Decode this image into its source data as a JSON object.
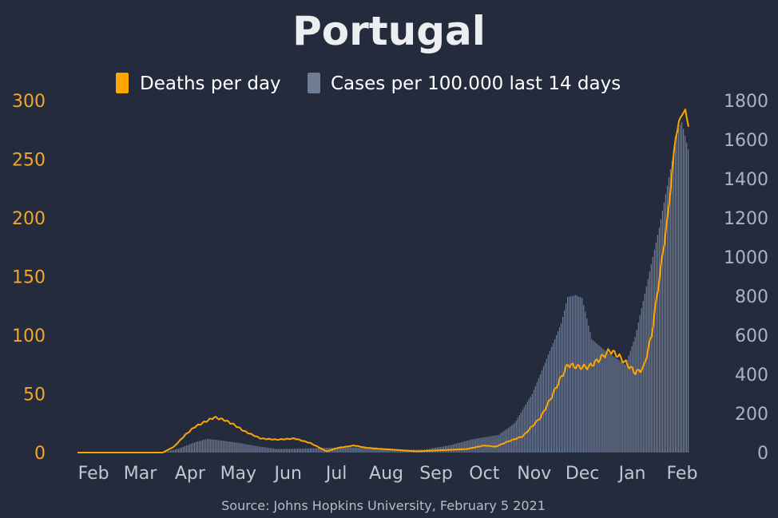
{
  "chart_data": {
    "type": "bar+line",
    "title": "Portugal",
    "source": "Source: Johns Hopkins University, February 5 2021",
    "x_ticks": [
      "Feb",
      "Mar",
      "Apr",
      "May",
      "Jun",
      "Jul",
      "Aug",
      "Sep",
      "Oct",
      "Nov",
      "Dec",
      "Jan",
      "Feb"
    ],
    "y_left": {
      "ticks": [
        0,
        50,
        100,
        150,
        200,
        250,
        300
      ],
      "range": [
        0,
        300
      ]
    },
    "y_right": {
      "ticks": [
        0,
        200,
        400,
        600,
        800,
        1000,
        1200,
        1400,
        1600,
        1800
      ],
      "range": [
        0,
        1800
      ]
    },
    "legend": [
      "Deaths per day",
      "Cases per 100.000 last 14 days"
    ],
    "colors": {
      "deaths": "#ffa500",
      "cases": "#6e7b95",
      "left_axis": "#f4a62a",
      "right_axis": "#aab3c5"
    },
    "series": [
      {
        "name": "Cases per 100.000 last 14 days",
        "axis": "right",
        "style": "bars",
        "keypoints": [
          [
            "2020-01-22",
            0
          ],
          [
            "2020-03-01",
            0
          ],
          [
            "2020-03-15",
            1
          ],
          [
            "2020-03-25",
            20
          ],
          [
            "2020-04-05",
            55
          ],
          [
            "2020-04-12",
            70
          ],
          [
            "2020-04-20",
            62
          ],
          [
            "2020-05-01",
            50
          ],
          [
            "2020-05-15",
            30
          ],
          [
            "2020-05-25",
            18
          ],
          [
            "2020-06-10",
            20
          ],
          [
            "2020-06-25",
            24
          ],
          [
            "2020-07-10",
            27
          ],
          [
            "2020-07-25",
            22
          ],
          [
            "2020-08-10",
            14
          ],
          [
            "2020-08-25",
            15
          ],
          [
            "2020-09-10",
            38
          ],
          [
            "2020-09-25",
            70
          ],
          [
            "2020-10-10",
            90
          ],
          [
            "2020-10-20",
            150
          ],
          [
            "2020-10-31",
            300
          ],
          [
            "2020-11-10",
            500
          ],
          [
            "2020-11-18",
            660
          ],
          [
            "2020-11-22",
            795
          ],
          [
            "2020-11-27",
            805
          ],
          [
            "2020-12-01",
            790
          ],
          [
            "2020-12-07",
            580
          ],
          [
            "2020-12-14",
            530
          ],
          [
            "2020-12-20",
            495
          ],
          [
            "2020-12-28",
            450
          ],
          [
            "2021-01-03",
            590
          ],
          [
            "2021-01-10",
            850
          ],
          [
            "2021-01-18",
            1150
          ],
          [
            "2021-01-25",
            1450
          ],
          [
            "2021-01-30",
            1660
          ],
          [
            "2021-02-01",
            1690
          ],
          [
            "2021-02-03",
            1620
          ],
          [
            "2021-02-05",
            1550
          ]
        ]
      },
      {
        "name": "Deaths per day",
        "axis": "left",
        "style": "line",
        "keypoints": [
          [
            "2020-01-22",
            0
          ],
          [
            "2020-03-15",
            0
          ],
          [
            "2020-03-22",
            5
          ],
          [
            "2020-03-29",
            15
          ],
          [
            "2020-04-04",
            22
          ],
          [
            "2020-04-10",
            26
          ],
          [
            "2020-04-16",
            30
          ],
          [
            "2020-04-22",
            28
          ],
          [
            "2020-04-28",
            24
          ],
          [
            "2020-05-05",
            18
          ],
          [
            "2020-05-15",
            12
          ],
          [
            "2020-05-25",
            11
          ],
          [
            "2020-06-05",
            12
          ],
          [
            "2020-06-15",
            8
          ],
          [
            "2020-06-25",
            1
          ],
          [
            "2020-07-02",
            4
          ],
          [
            "2020-07-12",
            6
          ],
          [
            "2020-07-20",
            4
          ],
          [
            "2020-07-30",
            3
          ],
          [
            "2020-08-10",
            2
          ],
          [
            "2020-08-20",
            1
          ],
          [
            "2020-09-05",
            2
          ],
          [
            "2020-09-20",
            3
          ],
          [
            "2020-10-01",
            6
          ],
          [
            "2020-10-08",
            5
          ],
          [
            "2020-10-15",
            9
          ],
          [
            "2020-10-25",
            14
          ],
          [
            "2020-11-05",
            30
          ],
          [
            "2020-11-12",
            48
          ],
          [
            "2020-11-17",
            62
          ],
          [
            "2020-11-22",
            75
          ],
          [
            "2020-11-28",
            73
          ],
          [
            "2020-12-05",
            73
          ],
          [
            "2020-12-12",
            80
          ],
          [
            "2020-12-18",
            87
          ],
          [
            "2020-12-23",
            83
          ],
          [
            "2020-12-29",
            75
          ],
          [
            "2021-01-03",
            68
          ],
          [
            "2021-01-08",
            72
          ],
          [
            "2021-01-13",
            100
          ],
          [
            "2021-01-18",
            150
          ],
          [
            "2021-01-23",
            200
          ],
          [
            "2021-01-28",
            270
          ],
          [
            "2021-02-01",
            290
          ],
          [
            "2021-02-03",
            290
          ],
          [
            "2021-02-05",
            280
          ]
        ]
      }
    ]
  }
}
